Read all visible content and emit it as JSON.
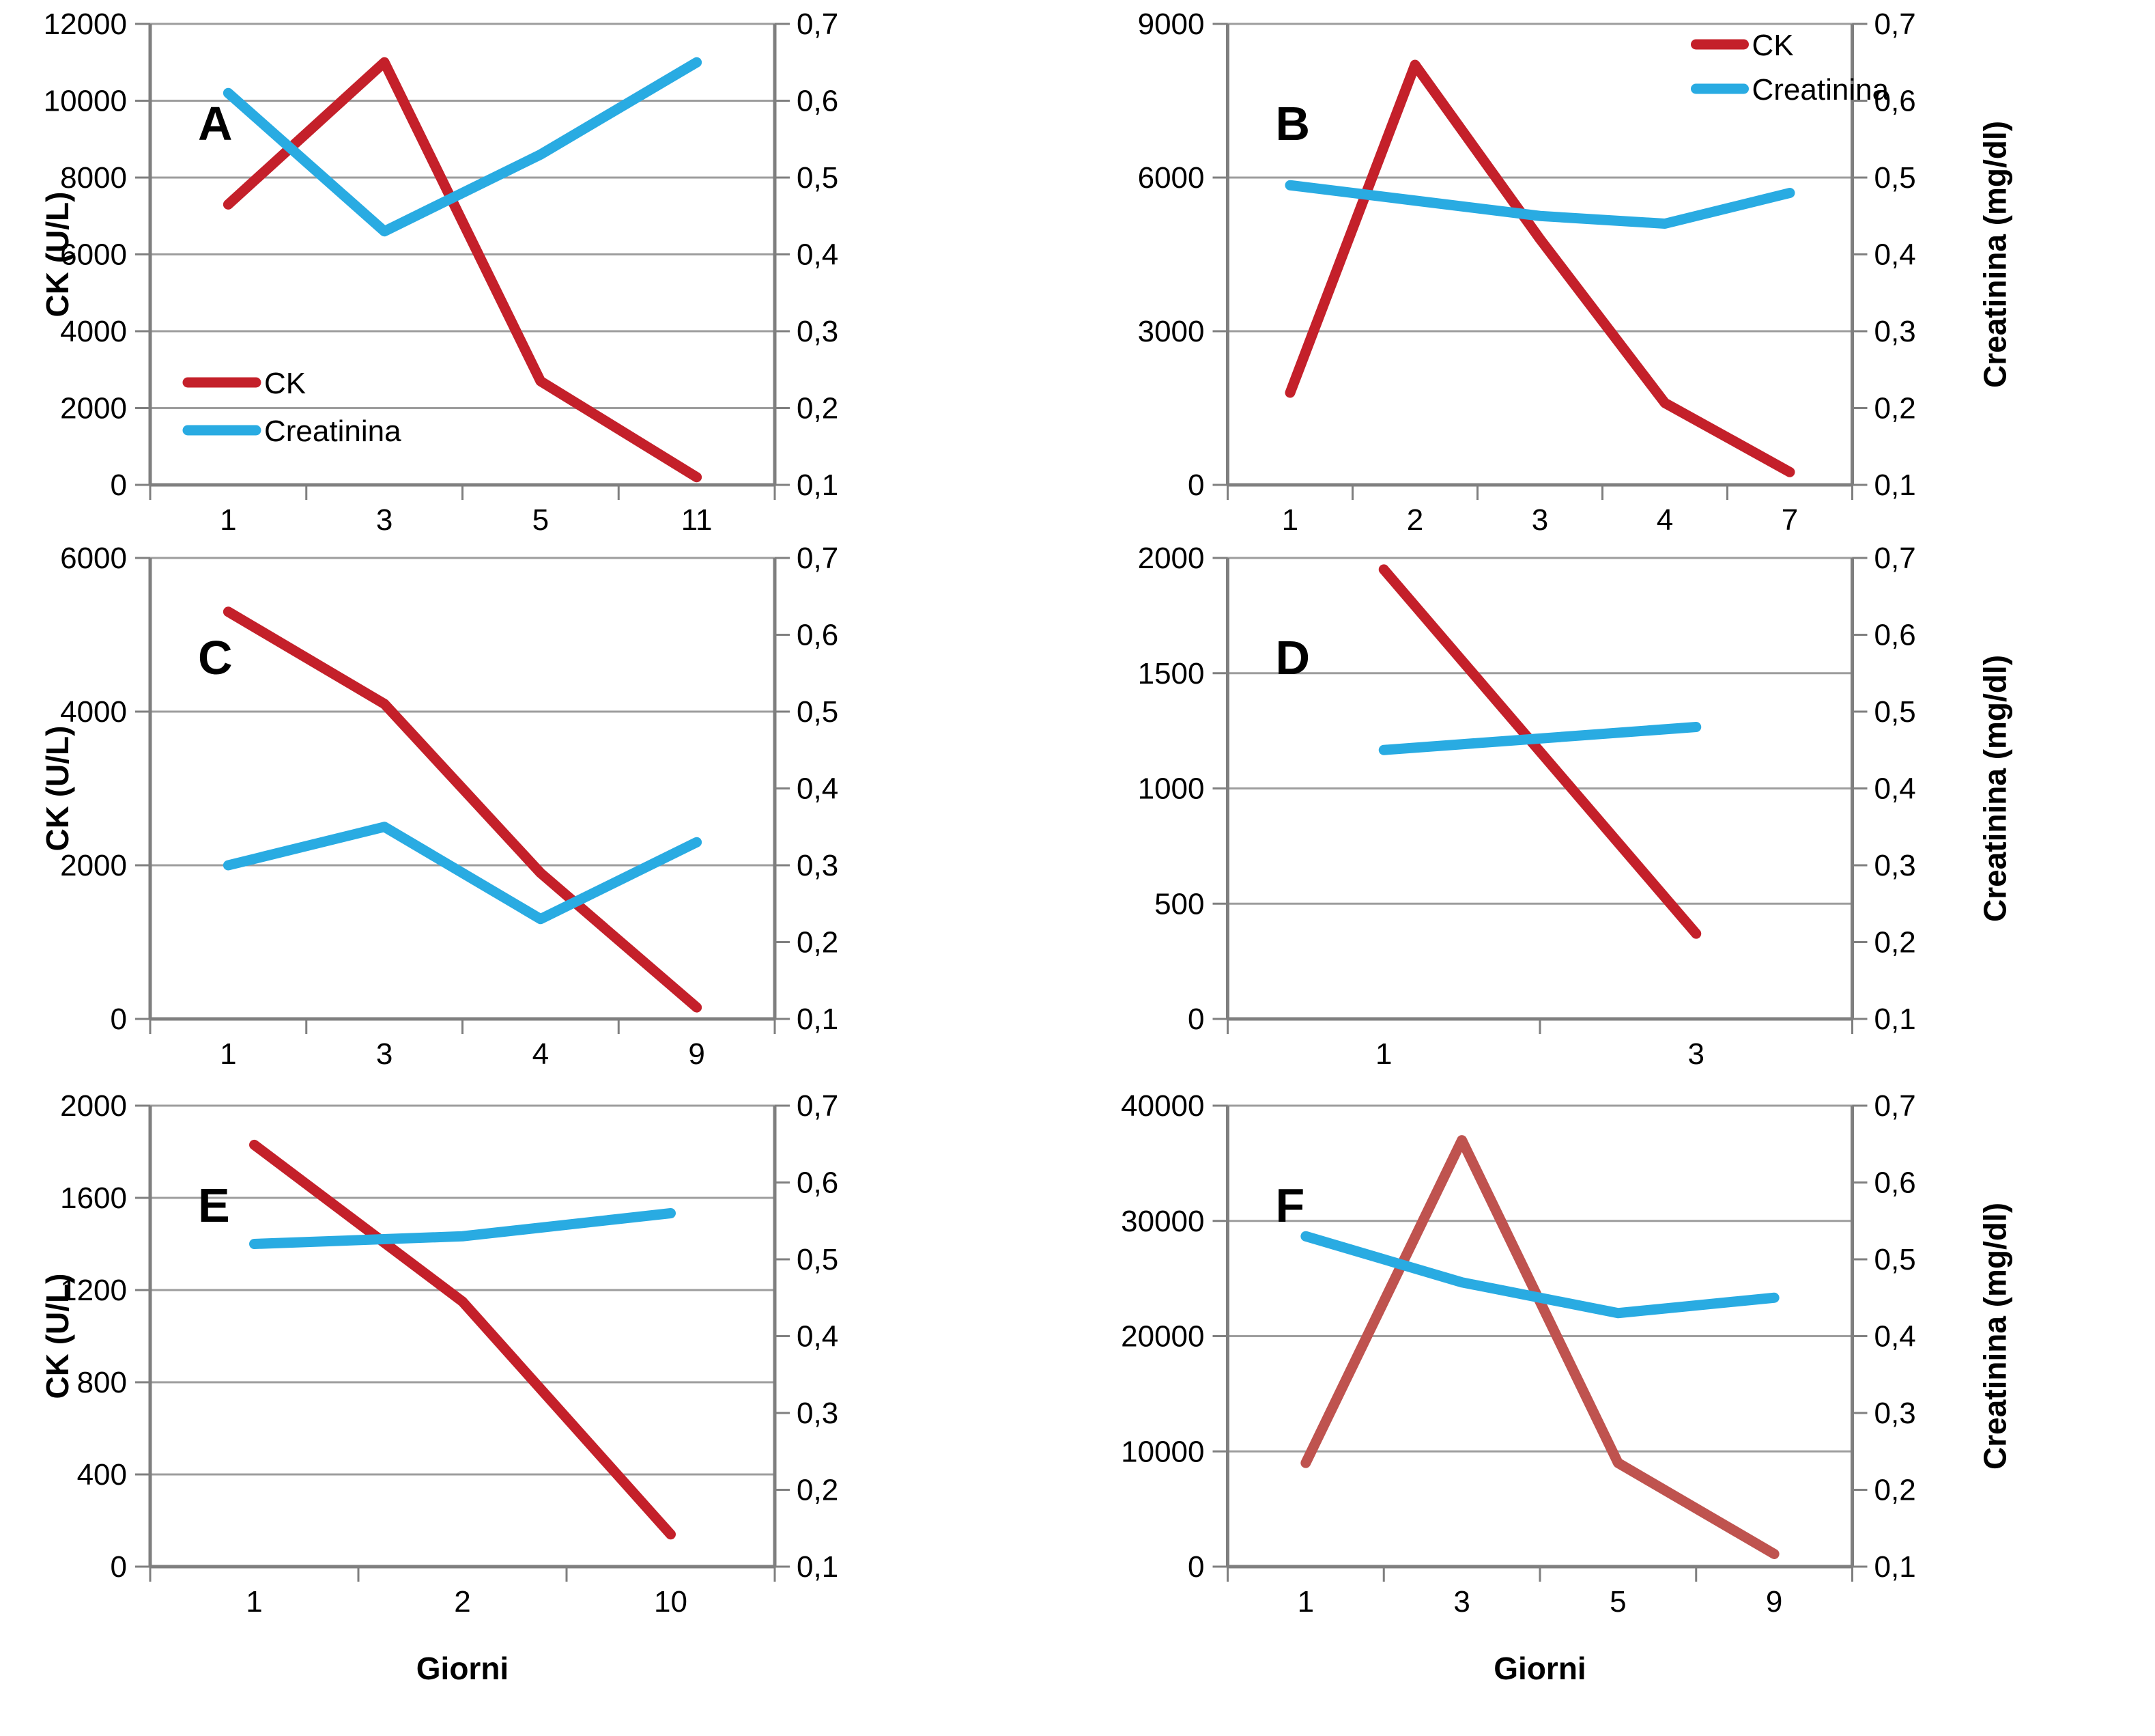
{
  "figure": {
    "background": "#ffffff",
    "description_labels": {
      "x_axis_title": "Giorni",
      "left_axis_title": "CK (U/L)",
      "right_axis_title": "Creatinina (mg/dl)"
    }
  },
  "colors": {
    "ck_red": "#c4202a",
    "ck_red_muted": "#bf534f",
    "creatinina_blue": "#29abe2",
    "gridline": "#9d9d9d",
    "axis": "#7f7f7f"
  },
  "right_axis_shared": {
    "title": "Creatinina (mg/dl)",
    "min": 0.1,
    "max": 0.7,
    "step": 0.1,
    "tick_labels": [
      "0,1",
      "0,2",
      "0,3",
      "0,4",
      "0,5",
      "0,6",
      "0,7"
    ]
  },
  "chart_data": [
    {
      "type": "line",
      "panel": "A",
      "x_categories": [
        "1",
        "3",
        "5",
        "11"
      ],
      "x_days": [
        1,
        3,
        5,
        11
      ],
      "left_axis": {
        "title": "CK (U/L)",
        "min": 0,
        "max": 12000,
        "step": 2000,
        "tick_labels": [
          "0",
          "2000",
          "4000",
          "6000",
          "8000",
          "10000",
          "12000"
        ]
      },
      "show_right_title": false,
      "xlabel": null,
      "legend": {
        "show": true,
        "position": "inside-bottom-left"
      },
      "series": [
        {
          "name": "CK",
          "axis": "left",
          "color": "#c4202a",
          "values": [
            7300,
            11000,
            2700,
            200
          ]
        },
        {
          "name": "Creatinina",
          "axis": "right",
          "color": "#29abe2",
          "values": [
            0.61,
            0.43,
            0.53,
            0.65
          ]
        }
      ]
    },
    {
      "type": "line",
      "panel": "B",
      "x_categories": [
        "1",
        "2",
        "3",
        "4",
        "7"
      ],
      "x_days": [
        1,
        2,
        3,
        4,
        7
      ],
      "left_axis": {
        "title": null,
        "min": 0,
        "max": 9000,
        "step": 3000,
        "tick_labels": [
          "0",
          "3000",
          "6000",
          "9000"
        ]
      },
      "show_right_title": true,
      "xlabel": null,
      "legend": {
        "show": true,
        "position": "inside-top-right"
      },
      "series": [
        {
          "name": "CK",
          "axis": "left",
          "color": "#c4202a",
          "values": [
            1800,
            8200,
            4800,
            1600,
            250
          ]
        },
        {
          "name": "Creatinina",
          "axis": "right",
          "color": "#29abe2",
          "values": [
            0.49,
            0.47,
            0.45,
            0.44,
            0.48
          ]
        }
      ]
    },
    {
      "type": "line",
      "panel": "C",
      "x_categories": [
        "1",
        "3",
        "4",
        "9"
      ],
      "x_days": [
        1,
        3,
        4,
        9
      ],
      "left_axis": {
        "title": "CK (U/L)",
        "min": 0,
        "max": 6000,
        "step": 2000,
        "tick_labels": [
          "0",
          "2000",
          "4000",
          "6000"
        ]
      },
      "show_right_title": false,
      "xlabel": null,
      "legend": null,
      "series": [
        {
          "name": "CK",
          "axis": "left",
          "color": "#c4202a",
          "values": [
            5300,
            4100,
            1900,
            150
          ]
        },
        {
          "name": "Creatinina",
          "axis": "right",
          "color": "#29abe2",
          "values": [
            0.3,
            0.35,
            0.23,
            0.33
          ]
        }
      ]
    },
    {
      "type": "line",
      "panel": "D",
      "x_categories": [
        "1",
        "3"
      ],
      "x_days": [
        1,
        3
      ],
      "left_axis": {
        "title": null,
        "min": 0,
        "max": 2000,
        "step": 500,
        "tick_labels": [
          "0",
          "500",
          "1000",
          "1500",
          "2000"
        ]
      },
      "show_right_title": true,
      "xlabel": null,
      "legend": null,
      "series": [
        {
          "name": "CK",
          "axis": "left",
          "color": "#c4202a",
          "values": [
            1950,
            370
          ]
        },
        {
          "name": "Creatinina",
          "axis": "right",
          "color": "#29abe2",
          "values": [
            0.45,
            0.48
          ]
        }
      ]
    },
    {
      "type": "line",
      "panel": "E",
      "x_categories": [
        "1",
        "2",
        "10"
      ],
      "x_days": [
        1,
        2,
        10
      ],
      "left_axis": {
        "title": "CK (U/L)",
        "min": 0,
        "max": 2000,
        "step": 400,
        "tick_labels": [
          "0",
          "400",
          "800",
          "1200",
          "1600",
          "2000"
        ]
      },
      "show_right_title": false,
      "xlabel": "Giorni",
      "legend": null,
      "series": [
        {
          "name": "CK",
          "axis": "left",
          "color": "#c4202a",
          "values": [
            1830,
            1150,
            140
          ]
        },
        {
          "name": "Creatinina",
          "axis": "right",
          "color": "#29abe2",
          "values": [
            0.52,
            0.53,
            0.56
          ]
        }
      ]
    },
    {
      "type": "line",
      "panel": "F",
      "x_categories": [
        "1",
        "3",
        "5",
        "9"
      ],
      "x_days": [
        1,
        3,
        5,
        9
      ],
      "left_axis": {
        "title": null,
        "min": 0,
        "max": 40000,
        "step": 10000,
        "tick_labels": [
          "0",
          "10000",
          "20000",
          "30000",
          "40000"
        ]
      },
      "show_right_title": true,
      "xlabel": "Giorni",
      "legend": null,
      "series": [
        {
          "name": "CK",
          "axis": "left",
          "color": "#bf534f",
          "values": [
            9000,
            37000,
            9000,
            1100
          ]
        },
        {
          "name": "Creatinina",
          "axis": "right",
          "color": "#29abe2",
          "values": [
            0.53,
            0.47,
            0.43,
            0.45
          ]
        }
      ]
    }
  ]
}
